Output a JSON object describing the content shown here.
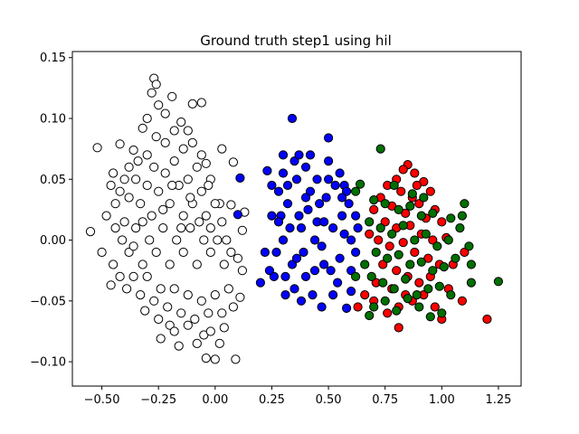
{
  "chart_data": {
    "type": "scatter",
    "title": "Ground truth step1 using hil",
    "xlabel": "",
    "ylabel": "",
    "xlim": [
      -0.63,
      1.35
    ],
    "ylim": [
      -0.12,
      0.155
    ],
    "xticks": [
      -0.5,
      -0.25,
      0.0,
      0.25,
      0.5,
      0.75,
      1.0,
      1.25
    ],
    "xtick_labels": [
      "−0.50",
      "−0.25",
      "0.00",
      "0.25",
      "0.50",
      "0.75",
      "1.00",
      "1.25"
    ],
    "yticks": [
      -0.1,
      -0.05,
      0.0,
      0.05,
      0.1,
      0.15
    ],
    "ytick_labels": [
      "−0.10",
      "−0.05",
      "0.00",
      "0.05",
      "0.10",
      "0.15"
    ],
    "grid": false,
    "legend": "none",
    "series": [
      {
        "color": "#ffffff",
        "points": [
          [
            -0.52,
            0.076
          ],
          [
            -0.27,
            0.133
          ],
          [
            -0.26,
            0.128
          ],
          [
            -0.28,
            0.121
          ],
          [
            -0.19,
            0.118
          ],
          [
            -0.25,
            0.111
          ],
          [
            -0.1,
            0.112
          ],
          [
            -0.06,
            0.113
          ],
          [
            -0.3,
            0.1
          ],
          [
            -0.22,
            0.104
          ],
          [
            -0.15,
            0.097
          ],
          [
            -0.32,
            0.092
          ],
          [
            -0.12,
            0.09
          ],
          [
            -0.42,
            0.079
          ],
          [
            -0.36,
            0.074
          ],
          [
            0.03,
            0.075
          ],
          [
            0.08,
            0.064
          ],
          [
            -0.04,
            0.063
          ],
          [
            -0.45,
            0.055
          ],
          [
            -0.38,
            0.06
          ],
          [
            -0.02,
            0.05
          ],
          [
            0.02,
            0.03
          ],
          [
            0.07,
            0.029
          ],
          [
            -0.55,
            0.007
          ],
          [
            -0.5,
            -0.01
          ],
          [
            -0.46,
            -0.037
          ],
          [
            -0.31,
            -0.058
          ],
          [
            -0.2,
            -0.07
          ],
          [
            -0.24,
            -0.081
          ],
          [
            -0.16,
            -0.087
          ],
          [
            -0.05,
            -0.078
          ],
          [
            0.0,
            -0.098
          ],
          [
            -0.04,
            -0.097
          ],
          [
            0.09,
            -0.098
          ],
          [
            0.04,
            -0.072
          ],
          [
            0.11,
            -0.047
          ],
          [
            0.12,
            -0.025
          ],
          [
            0.1,
            -0.015
          ],
          [
            0.12,
            0.008
          ],
          [
            0.13,
            0.023
          ],
          [
            -0.46,
            0.045
          ],
          [
            -0.42,
            0.04
          ],
          [
            -0.38,
            0.035
          ],
          [
            -0.35,
            0.05
          ],
          [
            -0.33,
            0.03
          ],
          [
            -0.3,
            0.045
          ],
          [
            -0.28,
            0.02
          ],
          [
            -0.25,
            0.04
          ],
          [
            -0.22,
            0.055
          ],
          [
            -0.2,
            0.03
          ],
          [
            -0.18,
            0.065
          ],
          [
            -0.16,
            0.045
          ],
          [
            -0.14,
            0.02
          ],
          [
            -0.12,
            0.05
          ],
          [
            -0.1,
            0.03
          ],
          [
            -0.08,
            0.06
          ],
          [
            -0.06,
            0.04
          ],
          [
            -0.04,
            0.02
          ],
          [
            -0.02,
            0.01
          ],
          [
            0.0,
            0.03
          ],
          [
            0.03,
            0.015
          ],
          [
            0.05,
            0.0
          ],
          [
            -0.48,
            0.02
          ],
          [
            -0.44,
            0.01
          ],
          [
            -0.41,
            0.0
          ],
          [
            -0.38,
            -0.01
          ],
          [
            -0.35,
            0.01
          ],
          [
            -0.32,
            -0.02
          ],
          [
            -0.29,
            0.0
          ],
          [
            -0.26,
            -0.01
          ],
          [
            -0.23,
            0.01
          ],
          [
            -0.2,
            -0.02
          ],
          [
            -0.17,
            0.0
          ],
          [
            -0.14,
            -0.01
          ],
          [
            -0.11,
            0.01
          ],
          [
            -0.08,
            -0.02
          ],
          [
            -0.05,
            0.0
          ],
          [
            -0.02,
            -0.01
          ],
          [
            0.01,
            0.0
          ],
          [
            0.04,
            -0.02
          ],
          [
            0.07,
            -0.01
          ],
          [
            -0.45,
            -0.02
          ],
          [
            -0.42,
            -0.03
          ],
          [
            -0.39,
            -0.04
          ],
          [
            -0.36,
            -0.03
          ],
          [
            -0.33,
            -0.045
          ],
          [
            -0.3,
            -0.03
          ],
          [
            -0.27,
            -0.05
          ],
          [
            -0.24,
            -0.04
          ],
          [
            -0.21,
            -0.055
          ],
          [
            -0.18,
            -0.04
          ],
          [
            -0.15,
            -0.06
          ],
          [
            -0.12,
            -0.045
          ],
          [
            -0.09,
            -0.065
          ],
          [
            -0.06,
            -0.05
          ],
          [
            -0.03,
            -0.06
          ],
          [
            0.0,
            -0.045
          ],
          [
            0.03,
            -0.06
          ],
          [
            0.06,
            -0.04
          ],
          [
            0.08,
            -0.055
          ],
          [
            -0.25,
            -0.065
          ],
          [
            -0.18,
            -0.075
          ],
          [
            -0.12,
            -0.07
          ],
          [
            -0.08,
            -0.085
          ],
          [
            -0.02,
            -0.075
          ],
          [
            0.02,
            -0.085
          ],
          [
            -0.3,
            0.07
          ],
          [
            -0.26,
            0.085
          ],
          [
            -0.22,
            0.08
          ],
          [
            -0.18,
            0.09
          ],
          [
            -0.14,
            0.075
          ],
          [
            -0.1,
            0.08
          ],
          [
            -0.06,
            0.07
          ],
          [
            -0.34,
            0.065
          ],
          [
            -0.4,
            0.05
          ],
          [
            -0.44,
            0.03
          ],
          [
            -0.4,
            0.015
          ],
          [
            -0.36,
            -0.005
          ],
          [
            -0.32,
            0.015
          ],
          [
            -0.27,
            0.06
          ],
          [
            -0.23,
            0.025
          ],
          [
            -0.19,
            0.045
          ],
          [
            -0.15,
            0.01
          ],
          [
            -0.11,
            0.035
          ],
          [
            -0.07,
            0.015
          ],
          [
            -0.03,
            0.045
          ]
        ]
      },
      {
        "color": "#0000ff",
        "points": [
          [
            0.34,
            0.1
          ],
          [
            0.5,
            0.084
          ],
          [
            0.3,
            0.07
          ],
          [
            0.42,
            0.07
          ],
          [
            0.23,
            0.057
          ],
          [
            0.11,
            0.051
          ],
          [
            0.57,
            0.045
          ],
          [
            0.1,
            0.021
          ],
          [
            0.62,
            0.02
          ],
          [
            0.2,
            -0.035
          ],
          [
            0.31,
            -0.045
          ],
          [
            0.38,
            -0.05
          ],
          [
            0.47,
            -0.055
          ],
          [
            0.58,
            -0.056
          ],
          [
            0.6,
            -0.042
          ],
          [
            0.26,
            -0.03
          ],
          [
            0.22,
            -0.01
          ],
          [
            0.25,
            0.02
          ],
          [
            0.28,
            0.04
          ],
          [
            0.3,
            0.0
          ],
          [
            0.32,
            0.03
          ],
          [
            0.34,
            -0.02
          ],
          [
            0.36,
            0.05
          ],
          [
            0.38,
            0.01
          ],
          [
            0.4,
            -0.03
          ],
          [
            0.42,
            0.04
          ],
          [
            0.44,
            0.0
          ],
          [
            0.46,
            0.03
          ],
          [
            0.48,
            -0.02
          ],
          [
            0.5,
            0.05
          ],
          [
            0.52,
            0.01
          ],
          [
            0.54,
            -0.035
          ],
          [
            0.56,
            0.02
          ],
          [
            0.58,
            0.04
          ],
          [
            0.6,
            0.0
          ],
          [
            0.62,
            -0.01
          ],
          [
            0.3,
            0.055
          ],
          [
            0.35,
            0.065
          ],
          [
            0.4,
            0.06
          ],
          [
            0.45,
            0.05
          ],
          [
            0.5,
            0.065
          ],
          [
            0.55,
            0.055
          ],
          [
            0.27,
            -0.01
          ],
          [
            0.29,
            0.02
          ],
          [
            0.31,
            -0.03
          ],
          [
            0.33,
            0.01
          ],
          [
            0.35,
            -0.04
          ],
          [
            0.37,
            0.02
          ],
          [
            0.39,
            -0.01
          ],
          [
            0.41,
            0.025
          ],
          [
            0.43,
            -0.045
          ],
          [
            0.45,
            0.015
          ],
          [
            0.47,
            -0.005
          ],
          [
            0.49,
            0.035
          ],
          [
            0.51,
            -0.025
          ],
          [
            0.53,
            0.045
          ],
          [
            0.55,
            -0.015
          ],
          [
            0.57,
            0.005
          ],
          [
            0.59,
            0.03
          ],
          [
            0.25,
            0.045
          ],
          [
            0.24,
            -0.025
          ],
          [
            0.28,
            0.015
          ],
          [
            0.32,
            0.045
          ],
          [
            0.36,
            -0.015
          ],
          [
            0.4,
            0.035
          ],
          [
            0.44,
            -0.025
          ],
          [
            0.48,
            0.015
          ],
          [
            0.52,
            -0.045
          ],
          [
            0.56,
            0.035
          ],
          [
            0.6,
            -0.025
          ],
          [
            0.63,
            0.01
          ],
          [
            0.37,
            0.07
          ]
        ]
      },
      {
        "color": "#ff0000",
        "points": [
          [
            0.85,
            0.062
          ],
          [
            0.88,
            0.055
          ],
          [
            0.8,
            0.05
          ],
          [
            0.76,
            0.045
          ],
          [
            0.92,
            0.048
          ],
          [
            0.95,
            0.04
          ],
          [
            0.73,
            0.035
          ],
          [
            0.82,
            0.04
          ],
          [
            0.87,
            0.035
          ],
          [
            0.9,
            0.03
          ],
          [
            0.97,
            0.025
          ],
          [
            0.7,
            0.025
          ],
          [
            0.78,
            0.028
          ],
          [
            0.84,
            0.022
          ],
          [
            0.93,
            0.018
          ],
          [
            1.0,
            0.015
          ],
          [
            0.75,
            0.015
          ],
          [
            0.8,
            0.01
          ],
          [
            0.86,
            0.012
          ],
          [
            0.91,
            0.005
          ],
          [
            0.96,
            0.0
          ],
          [
            1.02,
            0.002
          ],
          [
            0.72,
            0.0
          ],
          [
            0.77,
            -0.005
          ],
          [
            0.83,
            -0.002
          ],
          [
            0.88,
            -0.01
          ],
          [
            0.94,
            -0.015
          ],
          [
            0.99,
            -0.02
          ],
          [
            0.74,
            -0.02
          ],
          [
            0.8,
            -0.025
          ],
          [
            0.85,
            -0.03
          ],
          [
            0.9,
            -0.035
          ],
          [
            0.95,
            -0.03
          ],
          [
            1.03,
            -0.04
          ],
          [
            0.78,
            -0.04
          ],
          [
            0.84,
            -0.045
          ],
          [
            0.63,
            -0.055
          ],
          [
            0.66,
            -0.045
          ],
          [
            0.7,
            -0.05
          ],
          [
            0.76,
            -0.06
          ],
          [
            0.81,
            -0.055
          ],
          [
            0.87,
            -0.05
          ],
          [
            0.92,
            -0.045
          ],
          [
            0.97,
            -0.055
          ],
          [
            1.0,
            -0.065
          ],
          [
            1.09,
            -0.05
          ],
          [
            1.2,
            -0.065
          ],
          [
            0.81,
            -0.072
          ],
          [
            1.05,
            -0.02
          ],
          [
            1.1,
            -0.01
          ],
          [
            0.68,
            0.005
          ],
          [
            0.71,
            -0.035
          ],
          [
            0.89,
            0.045
          ],
          [
            0.83,
            0.058
          ]
        ]
      },
      {
        "color": "#007000",
        "points": [
          [
            0.73,
            0.075
          ],
          [
            0.64,
            0.046
          ],
          [
            0.79,
            0.045
          ],
          [
            1.1,
            0.03
          ],
          [
            1.09,
            0.02
          ],
          [
            1.08,
            0.01
          ],
          [
            0.7,
            0.033
          ],
          [
            0.75,
            0.03
          ],
          [
            0.81,
            0.025
          ],
          [
            0.86,
            0.028
          ],
          [
            0.91,
            0.02
          ],
          [
            0.96,
            0.022
          ],
          [
            1.04,
            0.018
          ],
          [
            0.68,
            0.015
          ],
          [
            0.73,
            0.01
          ],
          [
            0.78,
            0.005
          ],
          [
            0.83,
            0.012
          ],
          [
            0.88,
            0.0
          ],
          [
            0.93,
            0.005
          ],
          [
            0.98,
            -0.005
          ],
          [
            1.03,
            0.0
          ],
          [
            0.71,
            -0.01
          ],
          [
            0.76,
            -0.015
          ],
          [
            0.81,
            -0.012
          ],
          [
            0.86,
            -0.02
          ],
          [
            0.91,
            -0.018
          ],
          [
            0.96,
            -0.025
          ],
          [
            1.01,
            -0.022
          ],
          [
            1.06,
            -0.015
          ],
          [
            1.12,
            -0.005
          ],
          [
            1.13,
            -0.02
          ],
          [
            1.13,
            -0.035
          ],
          [
            1.25,
            -0.034
          ],
          [
            0.69,
            -0.03
          ],
          [
            0.74,
            -0.035
          ],
          [
            0.79,
            -0.04
          ],
          [
            0.84,
            -0.032
          ],
          [
            0.89,
            -0.045
          ],
          [
            0.94,
            -0.04
          ],
          [
            0.99,
            -0.038
          ],
          [
            1.04,
            -0.045
          ],
          [
            0.62,
            -0.03
          ],
          [
            0.66,
            -0.02
          ],
          [
            0.7,
            -0.055
          ],
          [
            0.75,
            -0.05
          ],
          [
            0.8,
            -0.058
          ],
          [
            0.85,
            -0.048
          ],
          [
            0.9,
            -0.055
          ],
          [
            0.95,
            -0.063
          ],
          [
            1.0,
            -0.06
          ],
          [
            0.68,
            -0.062
          ],
          [
            0.87,
            0.038
          ],
          [
            0.92,
            0.035
          ],
          [
            0.62,
            0.04
          ]
        ]
      }
    ]
  }
}
